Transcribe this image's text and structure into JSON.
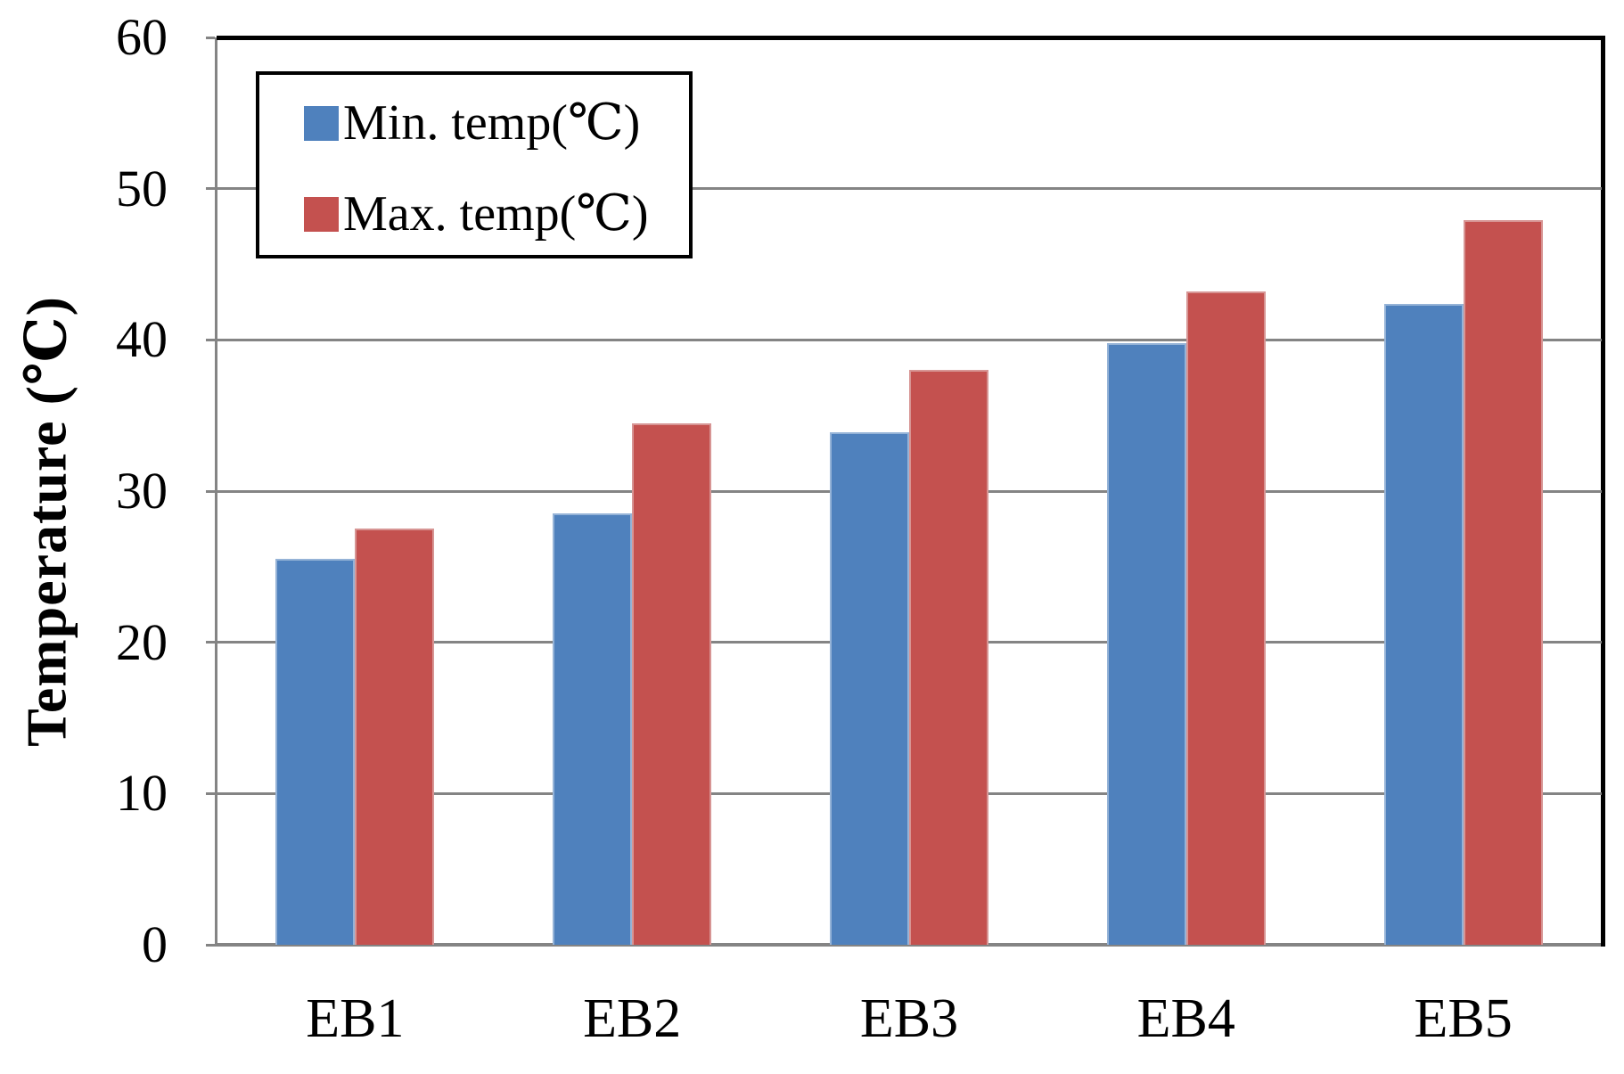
{
  "chart_data": {
    "type": "bar",
    "categories": [
      "EB1",
      "EB2",
      "EB3",
      "EB4",
      "EB5"
    ],
    "series": [
      {
        "name": "Min. temp(℃)",
        "values": [
          25.5,
          28.5,
          33.9,
          39.8,
          42.4
        ],
        "color": "#4F81BD",
        "edge_color": "#95B3D7"
      },
      {
        "name": "Max. temp(℃)",
        "values": [
          27.5,
          34.5,
          38.0,
          43.2,
          47.9
        ],
        "color": "#C4514F",
        "edge_color": "#D79594"
      }
    ],
    "title": "",
    "xlabel": "",
    "ylabel": "Temperature (℃)",
    "ylim": [
      0,
      60
    ],
    "yticks": [
      0,
      10,
      20,
      30,
      40,
      50,
      60
    ],
    "grid": true,
    "gridline_color": "#848484",
    "plot_border_color": "#000000",
    "legend_position": "upper-left-inside"
  }
}
